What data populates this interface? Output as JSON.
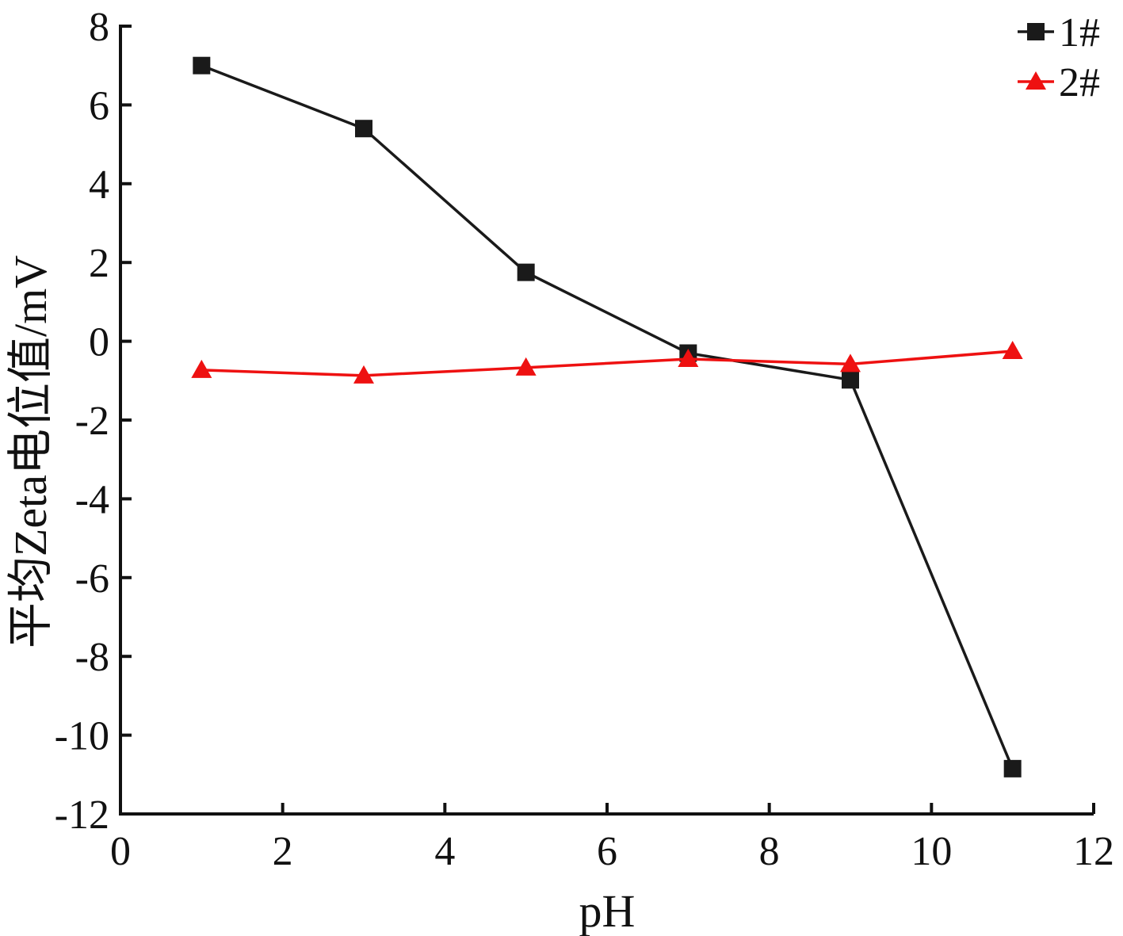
{
  "chart_data": {
    "type": "line",
    "title": "",
    "xlabel": "pH",
    "ylabel": "平均Zeta电位值/mV",
    "xlim": [
      0,
      12
    ],
    "ylim": [
      -12,
      8
    ],
    "xticks": [
      0,
      2,
      4,
      6,
      8,
      10,
      12
    ],
    "yticks": [
      8,
      6,
      4,
      2,
      0,
      -2,
      -4,
      -6,
      -8,
      -10,
      -12
    ],
    "grid": false,
    "legend_position": "top-right",
    "series": [
      {
        "name": "1#",
        "marker": "square",
        "color": "#1a1a1a",
        "x": [
          1,
          3,
          5,
          7,
          9,
          11
        ],
        "y": [
          7.0,
          5.4,
          1.75,
          -0.3,
          -0.98,
          -10.85
        ]
      },
      {
        "name": "2#",
        "marker": "triangle",
        "color": "#ee1111",
        "x": [
          1,
          3,
          5,
          7,
          9,
          11
        ],
        "y": [
          -0.73,
          -0.87,
          -0.67,
          -0.45,
          -0.58,
          -0.25
        ]
      }
    ]
  }
}
